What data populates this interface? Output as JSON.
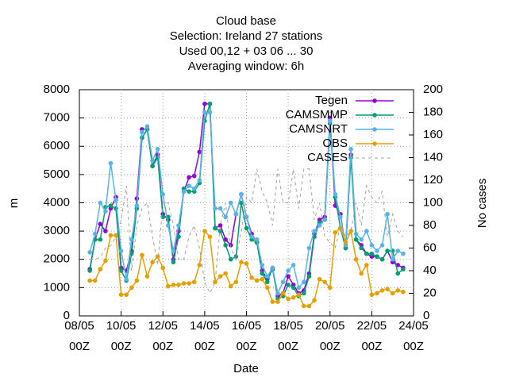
{
  "chart_data": {
    "type": "line",
    "title": [
      "Cloud base",
      "Selection: Ireland      27 stations",
      "Used  00,12  + 03 06 ... 30",
      "Averaging window:  6h"
    ],
    "xlabel": "Date",
    "ylabel": "m",
    "y2label": "No cases",
    "x": [
      8.5,
      8.75,
      9,
      9.25,
      9.5,
      9.75,
      10,
      10.25,
      10.5,
      10.75,
      11,
      11.25,
      11.5,
      11.75,
      12,
      12.25,
      12.5,
      12.75,
      13,
      13.25,
      13.5,
      13.75,
      14,
      14.25,
      14.5,
      14.75,
      15,
      15.25,
      15.5,
      15.75,
      16,
      16.25,
      16.5,
      16.75,
      17,
      17.25,
      17.5,
      17.75,
      18,
      18.25,
      18.5,
      18.75,
      19,
      19.25,
      19.5,
      19.75,
      20,
      20.25,
      20.5,
      20.75,
      21,
      21.25,
      21.5,
      21.75,
      22,
      22.25,
      22.5,
      22.75,
      23,
      23.25,
      23.5
    ],
    "xlim": [
      8,
      24
    ],
    "xticks": [
      {
        "value": 8,
        "label": "08/05\n00Z"
      },
      {
        "value": 10,
        "label": "10/05\n00Z"
      },
      {
        "value": 12,
        "label": "12/05\n00Z"
      },
      {
        "value": 14,
        "label": "14/05\n00Z"
      },
      {
        "value": 16,
        "label": "16/05\n00Z"
      },
      {
        "value": 18,
        "label": "18/05\n00Z"
      },
      {
        "value": 20,
        "label": "20/05\n00Z"
      },
      {
        "value": 22,
        "label": "22/05\n00Z"
      },
      {
        "value": 24,
        "label": "24/05\n00Z"
      }
    ],
    "ylim": [
      0,
      8000
    ],
    "yticks": [
      0,
      1000,
      2000,
      3000,
      4000,
      5000,
      6000,
      7000,
      8000
    ],
    "y2lim": [
      0,
      200
    ],
    "y2ticks": [
      0,
      20,
      40,
      60,
      80,
      100,
      120,
      140,
      160,
      180,
      200
    ],
    "grid": true,
    "series": [
      {
        "name": "Tegen",
        "color": "#9400d3",
        "values": [
          1650,
          2700,
          3250,
          3000,
          3800,
          4200,
          1700,
          1600,
          2300,
          4150,
          6600,
          6600,
          5300,
          5700,
          3600,
          3400,
          2000,
          3000,
          4400,
          4900,
          4950,
          5800,
          7500,
          7500,
          3100,
          3200,
          2700,
          2500,
          3600,
          4300,
          3500,
          2900,
          2600,
          1600,
          1300,
          1650,
          700,
          800,
          1400,
          1100,
          800,
          900,
          1500,
          2900,
          3400,
          3500,
          7000,
          3900,
          3600,
          2400,
          5700,
          2700,
          2500,
          2200,
          2100,
          2100,
          2000,
          2300,
          1900,
          1800,
          1700
        ]
      },
      {
        "name": "CAMSMMP",
        "color": "#009e73",
        "values": [
          1600,
          2700,
          2700,
          3850,
          3900,
          3800,
          1600,
          1250,
          2200,
          3800,
          6300,
          6600,
          5300,
          5600,
          3500,
          3500,
          1900,
          2800,
          4500,
          4400,
          4400,
          4700,
          6900,
          7500,
          3100,
          3000,
          2500,
          2000,
          2100,
          4000,
          3100,
          2700,
          2600,
          1500,
          1200,
          1700,
          600,
          700,
          1100,
          1000,
          700,
          800,
          1400,
          2800,
          3300,
          3400,
          6800,
          4200,
          3100,
          2400,
          5600,
          2700,
          2400,
          2200,
          2200,
          2100,
          2000,
          2300,
          2300,
          1500,
          1650
        ]
      },
      {
        "name": "CAMSNRT",
        "color": "#56b4e9",
        "values": [
          2250,
          2900,
          4000,
          3700,
          5400,
          4100,
          2300,
          1300,
          2700,
          3900,
          6500,
          6700,
          5500,
          5900,
          4300,
          3200,
          2300,
          3200,
          4400,
          4600,
          4500,
          4800,
          7200,
          7200,
          3800,
          3800,
          3500,
          4000,
          3600,
          4300,
          3500,
          2800,
          2700,
          1800,
          1400,
          1700,
          800,
          1200,
          1600,
          1800,
          1000,
          1200,
          2400,
          3000,
          3200,
          3400,
          6900,
          4300,
          3500,
          2500,
          5900,
          2900,
          2700,
          3000,
          2500,
          2300,
          2500,
          3600,
          2000,
          2300,
          2200
        ]
      },
      {
        "name": "OBS",
        "color": "#e69f00",
        "values": [
          1250,
          1250,
          1650,
          1950,
          2850,
          2850,
          750,
          750,
          1000,
          1250,
          2150,
          1400,
          1900,
          2100,
          1700,
          1050,
          1100,
          1100,
          1150,
          1150,
          1200,
          1800,
          3000,
          2800,
          1200,
          1400,
          1500,
          1050,
          1200,
          1900,
          1850,
          1350,
          1250,
          1300,
          1000,
          500,
          500,
          800,
          600,
          650,
          750,
          350,
          350,
          550,
          1300,
          1200,
          1000,
          2950,
          3100,
          2600,
          3000,
          2000,
          1500,
          1800,
          750,
          800,
          900,
          950,
          800,
          900,
          850
        ]
      },
      {
        "name": "CASES",
        "color": "#a0a0a0",
        "axis": "y2",
        "dashed": true,
        "values": [
          50,
          50,
          52,
          60,
          62,
          70,
          85,
          115,
          40,
          80,
          95,
          100,
          70,
          45,
          100,
          100,
          80,
          50,
          50,
          70,
          80,
          60,
          30,
          20,
          30,
          80,
          100,
          60,
          50,
          75,
          105,
          100,
          130,
          110,
          100,
          80,
          130,
          100,
          100,
          130,
          95,
          130,
          130,
          85,
          100,
          70,
          65,
          60,
          80,
          70,
          75,
          100,
          80,
          115,
          105,
          100,
          110,
          70,
          90,
          75,
          70
        ]
      }
    ]
  }
}
